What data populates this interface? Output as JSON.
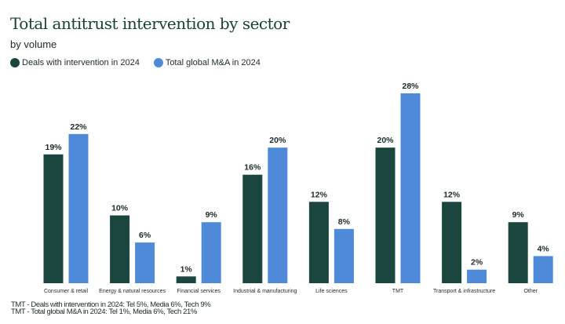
{
  "chart_data": {
    "type": "bar",
    "title": "Total antitrust intervention by sector",
    "subtitle": "by volume",
    "xlabel": "",
    "ylabel": "",
    "ylim": [
      0,
      28
    ],
    "grid": false,
    "legend_position": "top-left",
    "categories": [
      "Consumer & retail",
      "Energy & natural resources",
      "Financial services",
      "Industrial & manufacturing",
      "Life sciences",
      "TMT",
      "Transport & infrastructure",
      "Other"
    ],
    "series": [
      {
        "name": "Deals with intervention in 2024",
        "color": "#1b463f",
        "values": [
          19,
          10,
          1,
          16,
          12,
          20,
          12,
          9
        ]
      },
      {
        "name": "Total global M&A in 2024",
        "color": "#4f8ad8",
        "values": [
          22,
          6,
          9,
          20,
          8,
          28,
          2,
          4
        ]
      }
    ],
    "value_suffix": "%"
  },
  "footnotes": [
    "TMT - Deals with intervention in 2024: Tel 5%, Media 6%, Tech 9%",
    "TMT - Total global M&A in 2024: Tel 1%, Media 6%, Tech 21%"
  ]
}
